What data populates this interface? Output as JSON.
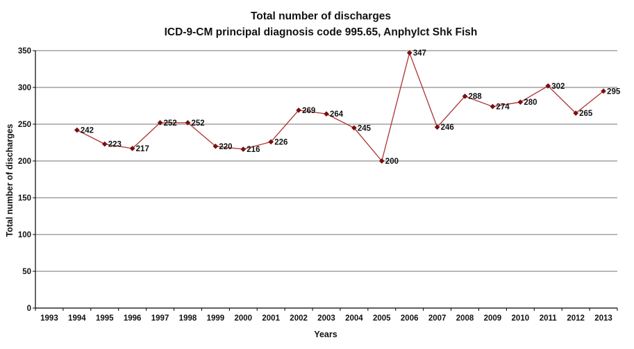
{
  "chart_data": {
    "type": "line",
    "title": "Total number of discharges",
    "subtitle": "ICD-9-CM principal diagnosis code 995.65, Anphylct Shk Fish",
    "xlabel": "Years",
    "ylabel": "Total number of discharges",
    "categories": [
      "1993",
      "1994",
      "1995",
      "1996",
      "1997",
      "1998",
      "1999",
      "2000",
      "2001",
      "2002",
      "2003",
      "2004",
      "2005",
      "2006",
      "2007",
      "2008",
      "2009",
      "2010",
      "2011",
      "2012",
      "2013"
    ],
    "series": [
      {
        "name": "Total number of discharges",
        "color": "#a83232",
        "marker_color": "#7a0f0f",
        "values": [
          null,
          242,
          223,
          217,
          252,
          252,
          220,
          216,
          226,
          269,
          264,
          245,
          200,
          347,
          246,
          288,
          274,
          280,
          302,
          265,
          295
        ]
      }
    ],
    "ylim": [
      0,
      350
    ],
    "yticks": [
      0,
      50,
      100,
      150,
      200,
      250,
      300,
      350
    ],
    "grid": true,
    "grid_color": "#a0a0a0"
  }
}
